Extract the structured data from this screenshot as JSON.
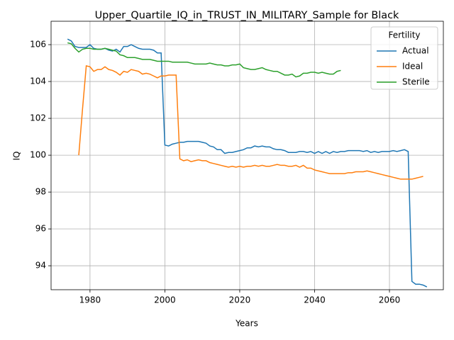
{
  "chart_data": {
    "type": "line",
    "title": "Upper_Quartile_IQ_in_TRUST_IN_MILITARY_Sample for Black",
    "x_label": "Years",
    "y_label": "IQ",
    "legend_title": "Fertility",
    "legend_position": "upper right",
    "grid": true,
    "xlim": [
      1969.6,
      2074.4
    ],
    "ylim": [
      92.7,
      107.27
    ],
    "xticks": [
      1980,
      2000,
      2020,
      2040,
      2060
    ],
    "yticks": [
      94,
      96,
      98,
      100,
      102,
      104,
      106
    ],
    "x": [
      1974,
      1975,
      1976,
      1977,
      1978,
      1979,
      1980,
      1981,
      1982,
      1983,
      1984,
      1985,
      1986,
      1987,
      1988,
      1989,
      1990,
      1991,
      1992,
      1993,
      1994,
      1995,
      1996,
      1997,
      1998,
      1999,
      2000,
      2001,
      2002,
      2003,
      2004,
      2005,
      2006,
      2007,
      2008,
      2009,
      2010,
      2011,
      2012,
      2013,
      2014,
      2015,
      2016,
      2017,
      2018,
      2019,
      2020,
      2021,
      2022,
      2023,
      2024,
      2025,
      2026,
      2027,
      2028,
      2029,
      2030,
      2031,
      2032,
      2033,
      2034,
      2035,
      2036,
      2037,
      2038,
      2039,
      2040,
      2041,
      2042,
      2043,
      2044,
      2045,
      2046,
      2047,
      2048,
      2049,
      2050,
      2051,
      2052,
      2053,
      2054,
      2055,
      2056,
      2057,
      2058,
      2059,
      2060,
      2061,
      2062,
      2063,
      2064,
      2065,
      2066,
      2067,
      2068,
      2069,
      2070
    ],
    "series": [
      {
        "name": "Actual",
        "color": "#1f77b4",
        "values": [
          106.3,
          106.2,
          105.9,
          105.85,
          105.85,
          105.85,
          106.0,
          105.8,
          105.75,
          105.75,
          105.8,
          105.7,
          105.65,
          105.75,
          105.6,
          105.9,
          105.9,
          106.0,
          105.9,
          105.8,
          105.75,
          105.75,
          105.75,
          105.7,
          105.55,
          105.55,
          100.55,
          100.5,
          100.6,
          100.65,
          100.7,
          100.7,
          100.75,
          100.75,
          100.75,
          100.75,
          100.7,
          100.65,
          100.5,
          100.45,
          100.3,
          100.3,
          100.1,
          100.15,
          100.15,
          100.2,
          100.25,
          100.3,
          100.4,
          100.4,
          100.5,
          100.45,
          100.5,
          100.45,
          100.45,
          100.35,
          100.3,
          100.3,
          100.25,
          100.15,
          100.15,
          100.15,
          100.2,
          100.2,
          100.15,
          100.2,
          100.1,
          100.2,
          100.1,
          100.2,
          100.1,
          100.2,
          100.15,
          100.2,
          100.2,
          100.25,
          100.25,
          100.25,
          100.25,
          100.2,
          100.25,
          100.15,
          100.2,
          100.15,
          100.2,
          100.2,
          100.2,
          100.25,
          100.2,
          100.25,
          100.3,
          100.2,
          93.15,
          93.0,
          93.0,
          92.95,
          92.85
        ]
      },
      {
        "name": "Ideal",
        "color": "#ff7f0e",
        "values": [
          null,
          null,
          null,
          100.0,
          102.5,
          104.85,
          104.8,
          104.55,
          104.65,
          104.65,
          104.8,
          104.65,
          104.6,
          104.5,
          104.35,
          104.55,
          104.5,
          104.65,
          104.6,
          104.55,
          104.4,
          104.45,
          104.4,
          104.3,
          104.2,
          104.3,
          104.3,
          104.35,
          104.35,
          104.35,
          99.8,
          99.7,
          99.75,
          99.65,
          99.7,
          99.75,
          99.7,
          99.7,
          99.6,
          99.55,
          99.5,
          99.45,
          99.4,
          99.35,
          99.4,
          99.35,
          99.4,
          99.35,
          99.4,
          99.4,
          99.45,
          99.4,
          99.45,
          99.4,
          99.4,
          99.45,
          99.5,
          99.45,
          99.45,
          99.4,
          99.4,
          99.45,
          99.35,
          99.45,
          99.3,
          99.3,
          99.2,
          99.15,
          99.1,
          99.05,
          99.0,
          99.0,
          99.0,
          99.0,
          99.0,
          99.05,
          99.05,
          99.1,
          99.1,
          99.1,
          99.15,
          99.1,
          99.05,
          99.0,
          98.95,
          98.9,
          98.85,
          98.8,
          98.75,
          98.7,
          98.7,
          98.7,
          98.7,
          98.75,
          98.8,
          98.85,
          null
        ]
      },
      {
        "name": "Sterile",
        "color": "#2ca02c",
        "values": [
          106.1,
          106.05,
          105.8,
          105.6,
          105.75,
          105.8,
          105.8,
          105.75,
          105.75,
          105.75,
          105.8,
          105.75,
          105.7,
          105.65,
          105.45,
          105.4,
          105.3,
          105.3,
          105.3,
          105.25,
          105.2,
          105.2,
          105.2,
          105.15,
          105.1,
          105.1,
          105.1,
          105.1,
          105.05,
          105.05,
          105.05,
          105.05,
          105.05,
          105.0,
          104.95,
          104.95,
          104.95,
          104.95,
          105.0,
          104.95,
          104.9,
          104.9,
          104.85,
          104.85,
          104.9,
          104.9,
          104.95,
          104.75,
          104.7,
          104.65,
          104.65,
          104.7,
          104.75,
          104.65,
          104.6,
          104.55,
          104.55,
          104.45,
          104.35,
          104.35,
          104.4,
          104.25,
          104.3,
          104.45,
          104.45,
          104.5,
          104.5,
          104.45,
          104.5,
          104.45,
          104.4,
          104.4,
          104.55,
          104.6,
          null,
          null,
          null,
          null,
          null,
          null,
          null,
          null,
          null,
          null,
          null,
          null,
          null,
          null,
          null,
          null,
          null,
          null,
          null,
          null,
          null,
          null,
          null
        ]
      }
    ]
  }
}
